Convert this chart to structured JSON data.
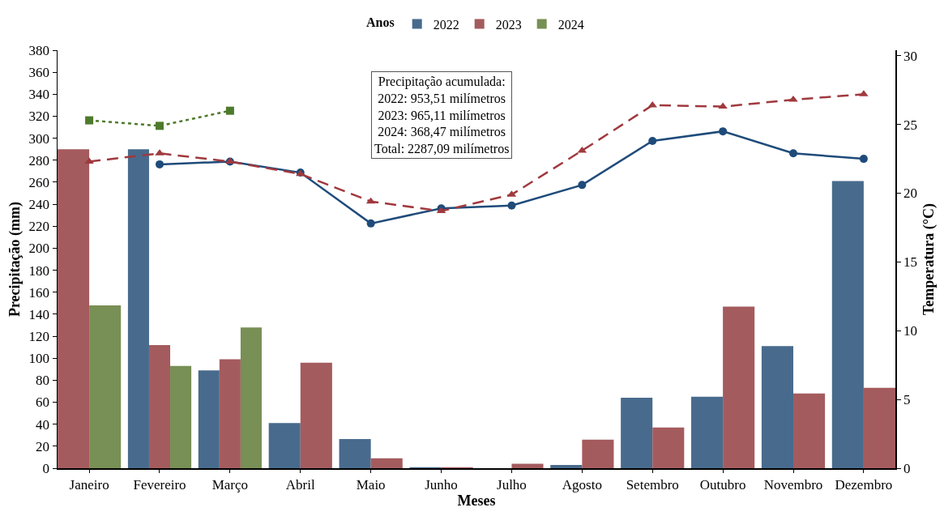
{
  "chart_data": {
    "type": "bar",
    "categories": [
      "Janeiro",
      "Fevereiro",
      "Março",
      "Abril",
      "Maio",
      "Junho",
      "Julho",
      "Agosto",
      "Setembro",
      "Outubro",
      "Novembro",
      "Dezembro"
    ],
    "xlabel": "Meses",
    "ylabel": "Precipitação (mm)",
    "y2label": "Temperatura (°C)",
    "legend_title": "Anos",
    "legend": "top",
    "grid": false,
    "ylim": [
      0,
      380
    ],
    "yticks": [
      0,
      20,
      40,
      60,
      80,
      100,
      120,
      140,
      160,
      180,
      200,
      220,
      240,
      260,
      280,
      300,
      320,
      340,
      360,
      380
    ],
    "y2lim": [
      0,
      30.4
    ],
    "y2ticks": [
      0,
      5,
      10,
      15,
      20,
      25,
      30
    ],
    "annotations": [
      "Precipitação acumulada:\n2022: 953,51 milímetros\n2023: 965,11 milímetros\n2024: 368,47 milímetros\nTotal: 2287,09 milímetros"
    ],
    "series": [
      {
        "name": "2022",
        "color": "#486b8d",
        "values": [
          null,
          290,
          89,
          41,
          26.5,
          1,
          0,
          3,
          64,
          65,
          111,
          261
        ]
      },
      {
        "name": "2023",
        "color": "#a45b5e",
        "values": [
          290,
          112,
          99,
          96,
          9,
          1,
          4,
          26,
          37,
          147,
          68,
          73
        ]
      },
      {
        "name": "2024",
        "color": "#788f55",
        "values": [
          148,
          93,
          128,
          null,
          null,
          null,
          null,
          null,
          null,
          null,
          null,
          null
        ]
      },
      {
        "type": "line",
        "axis": "y2",
        "color": "#1f4b7a",
        "marker": "circle",
        "line_style": "solid",
        "values": [
          null,
          22.1,
          22.3,
          21.5,
          17.8,
          18.9,
          19.1,
          20.6,
          23.8,
          24.5,
          22.9,
          22.5
        ]
      },
      {
        "type": "line",
        "axis": "y2",
        "color": "#a0393e",
        "marker": "triangle",
        "line_style": "dashed",
        "values": [
          22.3,
          22.9,
          22.3,
          21.4,
          19.4,
          18.7,
          19.9,
          23.1,
          26.4,
          26.3,
          26.8,
          27.2
        ]
      },
      {
        "type": "line",
        "axis": "y2",
        "color": "#4e7a2c",
        "marker": "square",
        "line_style": "dotted",
        "values": [
          25.3,
          24.9,
          26.0,
          null,
          null,
          null,
          null,
          null,
          null,
          null,
          null,
          null
        ]
      }
    ]
  }
}
